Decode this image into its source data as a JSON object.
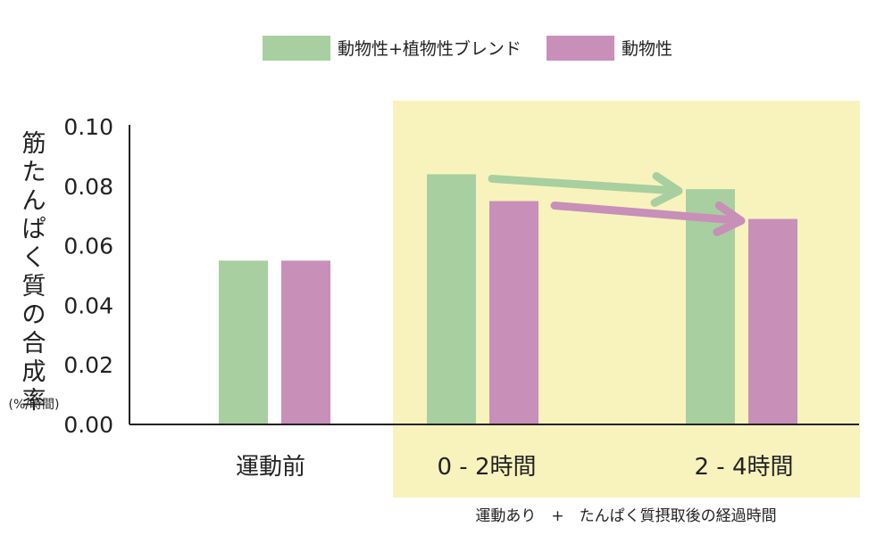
{
  "chart_data": {
    "type": "bar",
    "title": "",
    "ylabel": "筋たんぱく質の合成率",
    "yunit": "(%/時間)",
    "xlabel": "",
    "ylim": [
      0,
      0.1
    ],
    "yticks": [
      "0.00",
      "0.02",
      "0.04",
      "0.06",
      "0.08",
      "0.10"
    ],
    "ytick_values": [
      0,
      0.02,
      0.04,
      0.06,
      0.08,
      0.1
    ],
    "categories": [
      "運動前",
      "0 - 2時間",
      "2 - 4時間"
    ],
    "series": [
      {
        "name": "動物性+植物性ブレンド",
        "color": "#a8cfa0",
        "values": [
          0.055,
          0.084,
          0.079
        ]
      },
      {
        "name": "動物性",
        "color": "#c88fb8",
        "values": [
          0.055,
          0.075,
          0.069
        ]
      }
    ],
    "highlight": {
      "note": "運動あり　+　たんぱく質摂取後の経過時間",
      "color": "#f8f3bd",
      "categories": [
        "0 - 2時間",
        "2 - 4時間"
      ]
    },
    "arrows": [
      {
        "series": "動物性+植物性ブレンド",
        "from": "0 - 2時間",
        "to": "2 - 4時間",
        "color": "#a8cfa0"
      },
      {
        "series": "動物性",
        "from": "0 - 2時間",
        "to": "2 - 4時間",
        "color": "#c88fb8"
      }
    ]
  }
}
